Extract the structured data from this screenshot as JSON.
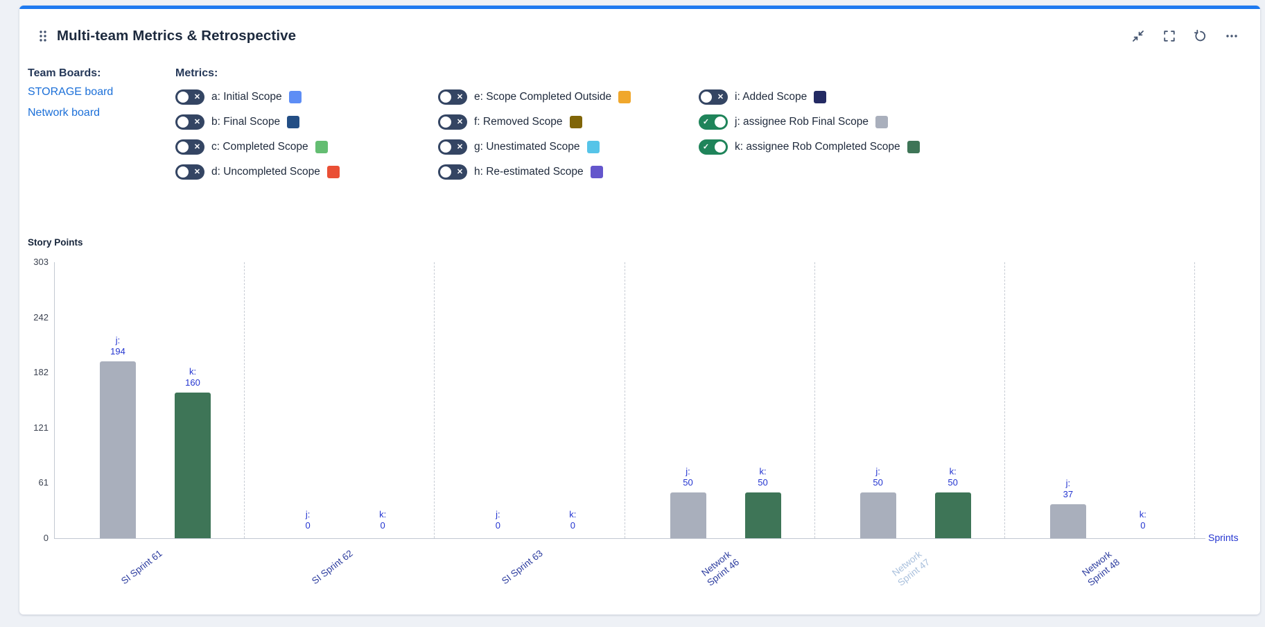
{
  "header": {
    "title": "Multi-team Metrics & Retrospective"
  },
  "team_boards": {
    "heading": "Team Boards:",
    "links": [
      "STORAGE board",
      "Network board"
    ],
    "link_color": "#1b6fd8"
  },
  "metrics": {
    "heading": "Metrics:",
    "columns": [
      [
        {
          "key": "a",
          "label": "a: Initial Scope",
          "color": "#5d8df5",
          "on": false
        },
        {
          "key": "b",
          "label": "b: Final Scope",
          "color": "#234e85",
          "on": false
        },
        {
          "key": "c",
          "label": "c: Completed Scope",
          "color": "#64bd72",
          "on": false
        },
        {
          "key": "d",
          "label": "d: Uncompleted Scope",
          "color": "#ea4f35",
          "on": false
        }
      ],
      [
        {
          "key": "e",
          "label": "e: Scope Completed Outside",
          "color": "#f0a72c",
          "on": false
        },
        {
          "key": "f",
          "label": "f: Removed Scope",
          "color": "#806508",
          "on": false
        },
        {
          "key": "g",
          "label": "g: Unestimated Scope",
          "color": "#56c4e8",
          "on": false
        },
        {
          "key": "h",
          "label": "h: Re-estimated Scope",
          "color": "#6456cc",
          "on": false
        }
      ],
      [
        {
          "key": "i",
          "label": "i: Added Scope",
          "color": "#232a63",
          "on": false
        },
        {
          "key": "j",
          "label": "j: assignee Rob Final Scope",
          "color": "#a9afbc",
          "on": true
        },
        {
          "key": "k",
          "label": "k: assignee Rob Completed Scope",
          "color": "#3e7557",
          "on": true
        }
      ]
    ]
  },
  "chart_data": {
    "type": "bar",
    "title": "",
    "ylabel": "Story Points",
    "xlabel": "Sprints",
    "ylim": [
      0,
      303
    ],
    "yticks": [
      0,
      61,
      121,
      182,
      242,
      303
    ],
    "categories": [
      "SI Sprint 61",
      "SI Sprint 62",
      "SI Sprint 63",
      "Network Sprint 46",
      "Network Sprint 47",
      "Network Sprint 48"
    ],
    "tick_display": [
      "SI Sprint 61",
      "SI Sprint 62",
      "SI Sprint 63",
      "Network\nSprint 46",
      "Network\nSprint 47",
      "Network\nSprint 48"
    ],
    "active_index": 4,
    "series": [
      {
        "name": "j",
        "color": "#a9afbc",
        "values": [
          194,
          0,
          0,
          50,
          50,
          37
        ]
      },
      {
        "name": "k",
        "color": "#3e7557",
        "values": [
          160,
          0,
          0,
          50,
          50,
          0
        ]
      }
    ],
    "colors": {
      "value_label": "#2334d0",
      "tick_label": "#2b3b9e",
      "tick_label_active": "#a8bfdc",
      "axis": "#c2c8d1",
      "separator": "#c8cdd5",
      "ytick_text": "#3b4250"
    },
    "legend_position": "top-toggles",
    "grid": "vertical dashed group separators"
  }
}
